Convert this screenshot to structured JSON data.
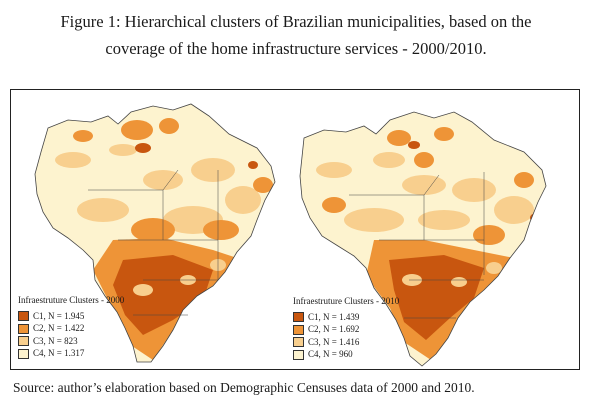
{
  "caption": {
    "line1": "Figure 1: Hierarchical clusters of Brazilian municipalities, based on the",
    "line2": "coverage of the home infrastructure services - 2000/2010."
  },
  "maps": [
    {
      "legend_title": "Infraestruture Clusters - 2000",
      "clusters": [
        {
          "label": "C1, N = 1.945",
          "color": "#c8560f"
        },
        {
          "label": "C2, N = 1.422",
          "color": "#ee9437"
        },
        {
          "label": "C3, N = 823",
          "color": "#f8cf8e"
        },
        {
          "label": "C4, N = 1.317",
          "color": "#fdf3cf"
        }
      ]
    },
    {
      "legend_title": "Infraestruture Clusters - 2010",
      "clusters": [
        {
          "label": "C1, N = 1.439",
          "color": "#c8560f"
        },
        {
          "label": "C2, N = 1.692",
          "color": "#ee9437"
        },
        {
          "label": "C3, N = 1.416",
          "color": "#f8cf8e"
        },
        {
          "label": "C4, N = 960",
          "color": "#fdf3cf"
        }
      ]
    }
  ],
  "source": "Source: author’s elaboration based on Demographic Censuses data of 2000 and 2010."
}
